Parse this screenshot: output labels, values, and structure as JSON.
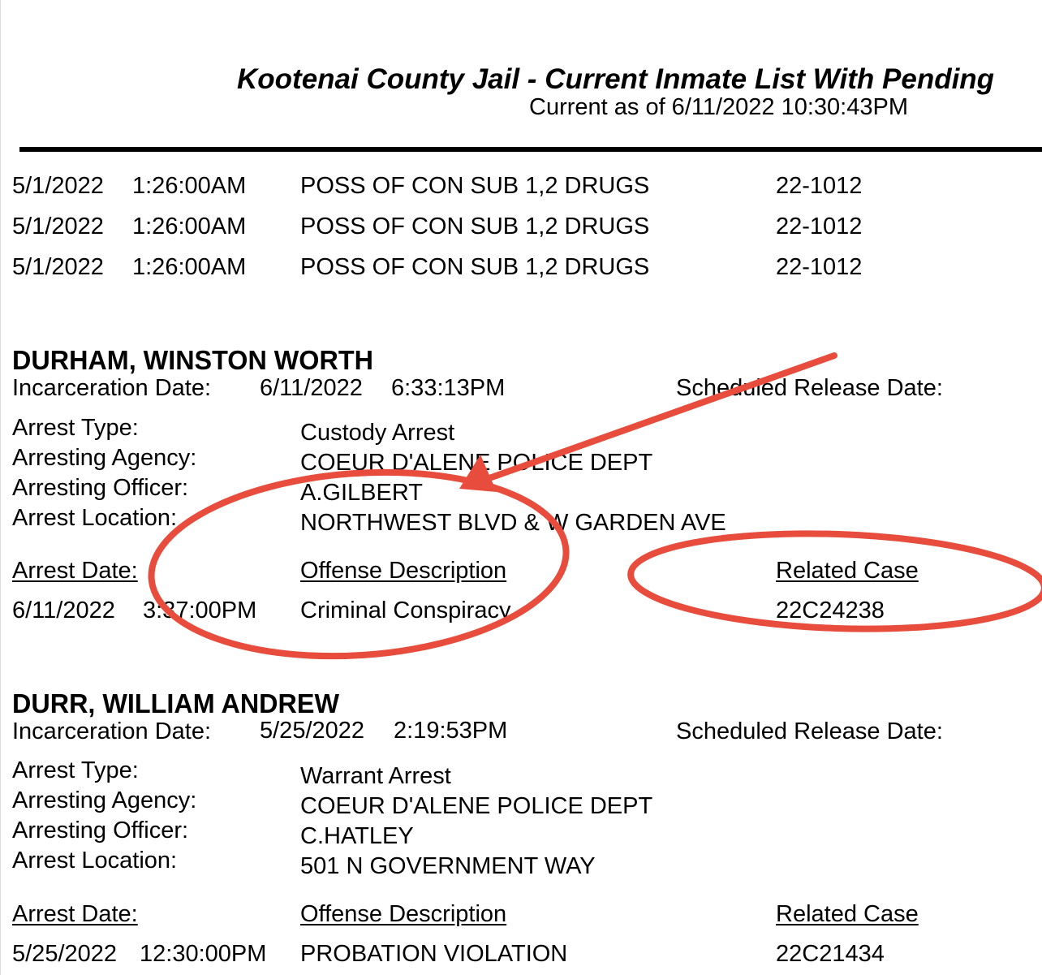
{
  "header": {
    "title": "Kootenai County Jail  - Current Inmate List With Pending",
    "subtitle": "Current as of 6/11/2022 10:30:43PM"
  },
  "previous_charges": [
    {
      "date": "5/1/2022",
      "time": "1:26:00AM",
      "offense": "POSS OF CON SUB 1,2 DRUGS",
      "case": "22-1012"
    },
    {
      "date": "5/1/2022",
      "time": "1:26:00AM",
      "offense": "POSS OF CON SUB 1,2 DRUGS",
      "case": "22-1012"
    },
    {
      "date": "5/1/2022",
      "time": "1:26:00AM",
      "offense": "POSS OF CON SUB 1,2 DRUGS",
      "case": "22-1012"
    }
  ],
  "labels": {
    "incarceration_date": "Incarceration Date:",
    "scheduled_release": "Scheduled Release Date:",
    "arrest_type": "Arrest Type:",
    "arresting_agency": "Arresting Agency:",
    "arresting_officer": "Arresting Officer:",
    "arrest_location": "Arrest Location:",
    "arrest_date": "Arrest Date:",
    "offense_description": "Offense Description",
    "related_case": "Related Case"
  },
  "inmates": [
    {
      "name": "DURHAM, WINSTON WORTH",
      "incarceration_date": "6/11/2022",
      "incarceration_time": "6:33:13PM",
      "arrest_type": "Custody Arrest",
      "arresting_agency": "COEUR D'ALENE POLICE DEPT",
      "arresting_officer": "A.GILBERT",
      "arrest_location": "NORTHWEST BLVD & W GARDEN AVE",
      "charges": [
        {
          "date": "6/11/2022",
          "time": "3:37:00PM",
          "offense": "Criminal Conspiracy",
          "case": "22C24238"
        }
      ]
    },
    {
      "name": "DURR, WILLIAM ANDREW",
      "incarceration_date": "5/25/2022",
      "incarceration_time": "2:19:53PM",
      "arrest_type": "Warrant Arrest",
      "arresting_agency": "COEUR D'ALENE POLICE DEPT",
      "arresting_officer": "C.HATLEY",
      "arrest_location": "501 N GOVERNMENT WAY",
      "charges": [
        {
          "date": "5/25/2022",
          "time": "12:30:00PM",
          "offense": "PROBATION VIOLATION",
          "case": "22C21434"
        }
      ]
    }
  ],
  "annotation_color": "#e74c3c"
}
